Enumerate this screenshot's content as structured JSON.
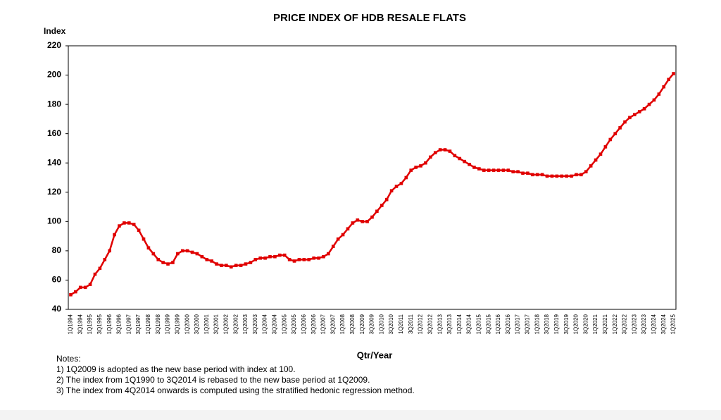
{
  "chart_data": {
    "type": "line",
    "title": "PRICE INDEX OF HDB RESALE FLATS",
    "y_label": "Index",
    "x_label": "Qtr/Year",
    "categories": [
      "1Q1994",
      null,
      "3Q1994",
      null,
      "1Q1995",
      null,
      "3Q1995",
      null,
      "1Q1996",
      null,
      "3Q1996",
      null,
      "1Q1997",
      null,
      "3Q1997",
      null,
      "1Q1998",
      null,
      "3Q1998",
      null,
      "1Q1999",
      null,
      "3Q1999",
      null,
      "1Q2000",
      null,
      "3Q2000",
      null,
      "1Q2001",
      null,
      "3Q2001",
      null,
      "1Q2002",
      null,
      "3Q2002",
      null,
      "1Q2003",
      null,
      "3Q2003",
      null,
      "1Q2004",
      null,
      "3Q2004",
      null,
      "1Q2005",
      null,
      "3Q2005",
      null,
      "1Q2006",
      null,
      "3Q2006",
      null,
      "1Q2007",
      null,
      "3Q2007",
      null,
      "1Q2008",
      null,
      "3Q2008",
      null,
      "1Q2009",
      null,
      "3Q2009",
      null,
      "1Q2010",
      null,
      "3Q2010",
      null,
      "1Q2011",
      null,
      "3Q2011",
      null,
      "1Q2012",
      null,
      "3Q2012",
      null,
      "1Q2013",
      null,
      "3Q2013",
      null,
      "1Q2014",
      null,
      "3Q2014",
      null,
      "1Q2015",
      null,
      "3Q2015",
      null,
      "1Q2016",
      null,
      "3Q2016",
      null,
      "1Q2017",
      null,
      "3Q2017",
      null,
      "1Q2018",
      null,
      "3Q2018",
      null,
      "1Q2019",
      null,
      "3Q2019",
      null,
      "1Q2020",
      null,
      "3Q2020",
      null,
      "1Q2021",
      null,
      "3Q2021",
      null,
      "1Q2022",
      null,
      "3Q2022",
      null,
      "1Q2023",
      null,
      "3Q2023",
      null,
      "1Q2024",
      null,
      "3Q2024",
      null,
      "1Q2025"
    ],
    "series": [
      {
        "name": "Price Index",
        "color": "#e00000",
        "values": [
          50,
          52,
          55,
          55,
          57,
          64,
          68,
          74,
          80,
          91,
          97,
          99,
          99,
          98,
          94,
          88,
          82,
          78,
          74,
          72,
          71,
          72,
          78,
          80,
          80,
          79,
          78,
          76,
          74,
          73,
          71,
          70,
          70,
          69,
          70,
          70,
          71,
          72,
          74,
          75,
          75,
          76,
          76,
          77,
          77,
          74,
          73,
          74,
          74,
          74,
          75,
          75,
          76,
          78,
          83,
          88,
          91,
          95,
          99,
          101,
          100,
          100,
          103,
          107,
          111,
          115,
          121,
          124,
          126,
          130,
          135,
          137,
          138,
          140,
          144,
          147,
          149,
          149,
          148,
          145,
          143,
          141,
          139,
          137,
          136,
          135,
          135,
          135,
          135,
          135,
          135,
          134,
          134,
          133,
          133,
          132,
          132,
          132,
          131,
          131,
          131,
          131,
          131,
          131,
          132,
          132,
          134,
          138,
          142,
          146,
          151,
          156,
          160,
          164,
          168,
          171,
          173,
          175,
          177,
          180,
          183,
          187,
          192,
          197,
          201
        ]
      }
    ],
    "ylim": [
      40,
      220
    ],
    "yticks": [
      40,
      60,
      80,
      100,
      120,
      140,
      160,
      180,
      200,
      220
    ],
    "grid": false,
    "notes": [
      "Notes:",
      "1) 1Q2009 is adopted as the new base period with index at 100.",
      "2) The index from 1Q1990 to 3Q2014 is rebased to the new base period at 1Q2009.",
      "3) The index from 4Q2014 onwards is computed using the stratified hedonic regression method."
    ]
  }
}
